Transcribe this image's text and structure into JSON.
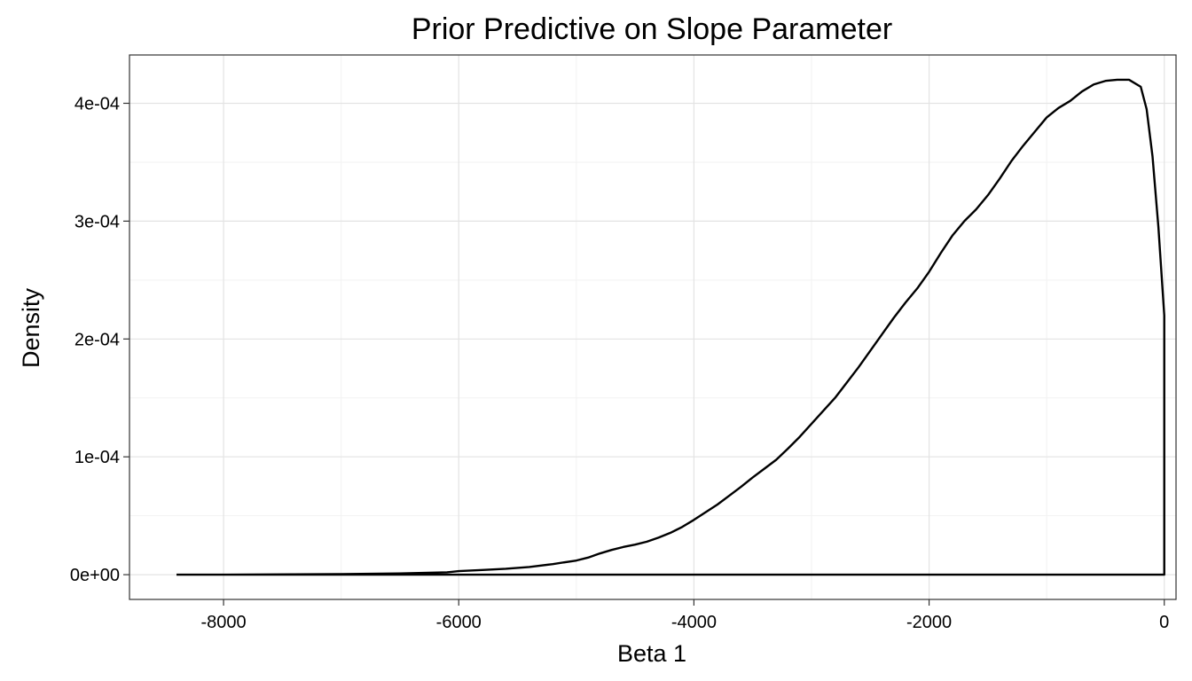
{
  "chart_data": {
    "type": "area",
    "title": "Prior Predictive on Slope Parameter",
    "xlabel": "Beta 1",
    "ylabel": "Density",
    "xlim": [
      -8800,
      100
    ],
    "ylim": [
      -2.1e-05,
      0.000441
    ],
    "x_ticks": [
      -8000,
      -6000,
      -4000,
      -2000,
      0
    ],
    "x_tick_labels": [
      "-8000",
      "-6000",
      "-4000",
      "-2000",
      "0"
    ],
    "y_ticks": [
      0,
      0.0001,
      0.0002,
      0.0003,
      0.0004
    ],
    "y_tick_labels": [
      "0e+00",
      "1e-04",
      "2e-04",
      "3e-04",
      "4e-04"
    ],
    "grid": true,
    "legend": "none",
    "series": [
      {
        "x": [
          -8400,
          -8000,
          -7000,
          -6500,
          -6300,
          -6100,
          -6000,
          -5800,
          -5600,
          -5400,
          -5200,
          -5000,
          -4900,
          -4800,
          -4700,
          -4600,
          -4500,
          -4400,
          -4300,
          -4200,
          -4100,
          -4000,
          -3900,
          -3800,
          -3700,
          -3600,
          -3500,
          -3400,
          -3300,
          -3200,
          -3100,
          -3000,
          -2900,
          -2800,
          -2700,
          -2600,
          -2500,
          -2400,
          -2300,
          -2200,
          -2100,
          -2000,
          -1900,
          -1800,
          -1700,
          -1600,
          -1500,
          -1400,
          -1300,
          -1200,
          -1100,
          -1000,
          -900,
          -800,
          -700,
          -600,
          -500,
          -400,
          -300,
          -200,
          -150,
          -100,
          -50,
          0
        ],
        "y": [
          0,
          0,
          5e-07,
          1e-06,
          1.5e-06,
          2e-06,
          3e-06,
          4e-06,
          5e-06,
          6.5e-06,
          9e-06,
          1.2e-05,
          1.45e-05,
          1.8e-05,
          2.1e-05,
          2.35e-05,
          2.55e-05,
          2.8e-05,
          3.15e-05,
          3.55e-05,
          4.05e-05,
          4.65e-05,
          5.3e-05,
          5.95e-05,
          6.7e-05,
          7.45e-05,
          8.25e-05,
          9e-05,
          9.75e-05,
          0.000107,
          0.000117,
          0.000128,
          0.000139,
          0.00015,
          0.000163,
          0.000176,
          0.00019,
          0.000204,
          0.000218,
          0.000231,
          0.000243,
          0.000257,
          0.000273,
          0.000288,
          0.0003,
          0.00031,
          0.000322,
          0.000336,
          0.000351,
          0.000364,
          0.000376,
          0.000388,
          0.000396,
          0.000402,
          0.00041,
          0.000416,
          0.000419,
          0.00042,
          0.00042,
          0.000414,
          0.000395,
          0.000355,
          0.000295,
          0.00022
        ]
      }
    ]
  }
}
